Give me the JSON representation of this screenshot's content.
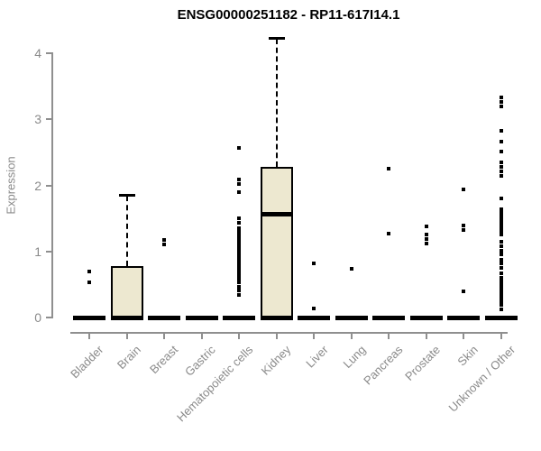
{
  "chart_data": {
    "type": "boxplot",
    "title": "ENSG00000251182 - RP11-617I14.1",
    "ylabel": "Expression",
    "xlabel": "",
    "ylim": [
      0,
      4.3
    ],
    "yticks": [
      0,
      1,
      2,
      3,
      4
    ],
    "grid": false,
    "legend": "none",
    "colors": {
      "box_fill": "#EDE8D0",
      "box_border": "#000000",
      "axis": "#8F8F8F",
      "tick_text": "#8A8A8A",
      "title_text": "#000000",
      "background": "#FFFFFF"
    },
    "categories": [
      "Bladder",
      "Brain",
      "Breast",
      "Gastric",
      "Hematopoietic cells",
      "Kidney",
      "Liver",
      "Lung",
      "Pancreas",
      "Prostate",
      "Skin",
      "Unknown / Other"
    ],
    "boxes": [
      {
        "category": "Bladder",
        "whisker_low": 0,
        "q1": 0,
        "median": 0,
        "q3": 0,
        "whisker_high": 0,
        "outliers": [
          0.7,
          0.53
        ]
      },
      {
        "category": "Brain",
        "whisker_low": 0,
        "q1": 0,
        "median": 0,
        "q3": 0.78,
        "whisker_high": 1.84,
        "outliers": []
      },
      {
        "category": "Breast",
        "whisker_low": 0,
        "q1": 0,
        "median": 0,
        "q3": 0,
        "whisker_high": 0,
        "outliers": [
          1.17,
          1.1
        ]
      },
      {
        "category": "Gastric",
        "whisker_low": 0,
        "q1": 0,
        "median": 0,
        "q3": 0,
        "whisker_high": 0,
        "outliers": []
      },
      {
        "category": "Hematopoietic cells",
        "whisker_low": 0,
        "q1": 0,
        "median": 0,
        "q3": 0,
        "whisker_high": 0,
        "outliers": [
          2.57,
          2.09,
          2.02,
          1.9,
          1.5,
          1.43,
          1.35,
          1.31,
          1.27,
          1.23,
          1.19,
          1.15,
          1.11,
          1.07,
          1.03,
          0.99,
          0.95,
          0.91,
          0.87,
          0.83,
          0.79,
          0.75,
          0.71,
          0.67,
          0.63,
          0.59,
          0.55,
          0.53,
          0.47,
          0.41,
          0.34
        ]
      },
      {
        "category": "Kidney",
        "whisker_low": 0,
        "q1": 0,
        "median": 1.57,
        "q3": 2.28,
        "whisker_high": 4.22,
        "outliers": []
      },
      {
        "category": "Liver",
        "whisker_low": 0,
        "q1": 0,
        "median": 0,
        "q3": 0,
        "whisker_high": 0,
        "outliers": [
          0.82,
          0.14
        ]
      },
      {
        "category": "Lung",
        "whisker_low": 0,
        "q1": 0,
        "median": 0,
        "q3": 0,
        "whisker_high": 0,
        "outliers": [
          0.74
        ]
      },
      {
        "category": "Pancreas",
        "whisker_low": 0,
        "q1": 0,
        "median": 0,
        "q3": 0,
        "whisker_high": 0,
        "outliers": [
          2.25,
          1.27
        ]
      },
      {
        "category": "Prostate",
        "whisker_low": 0,
        "q1": 0,
        "median": 0,
        "q3": 0,
        "whisker_high": 0,
        "outliers": [
          1.38,
          1.26,
          1.19,
          1.12
        ]
      },
      {
        "category": "Skin",
        "whisker_low": 0,
        "q1": 0,
        "median": 0,
        "q3": 0,
        "whisker_high": 0,
        "outliers": [
          1.94,
          1.39,
          1.32,
          0.4
        ]
      },
      {
        "category": "Unknown / Other",
        "whisker_low": 0,
        "q1": 0,
        "median": 0,
        "q3": 0,
        "whisker_high": 0,
        "outliers": [
          3.33,
          3.26,
          3.19,
          2.83,
          2.66,
          2.51,
          2.35,
          2.28,
          2.21,
          2.14,
          1.8,
          1.64,
          1.61,
          1.58,
          1.55,
          1.52,
          1.49,
          1.46,
          1.43,
          1.4,
          1.37,
          1.34,
          1.31,
          1.28,
          1.26,
          1.15,
          1.08,
          1.01,
          0.95,
          0.88,
          0.82,
          0.75,
          0.67,
          0.6,
          0.57,
          0.54,
          0.51,
          0.48,
          0.45,
          0.42,
          0.39,
          0.36,
          0.33,
          0.3,
          0.27,
          0.23,
          0.19,
          0.12
        ]
      }
    ]
  }
}
